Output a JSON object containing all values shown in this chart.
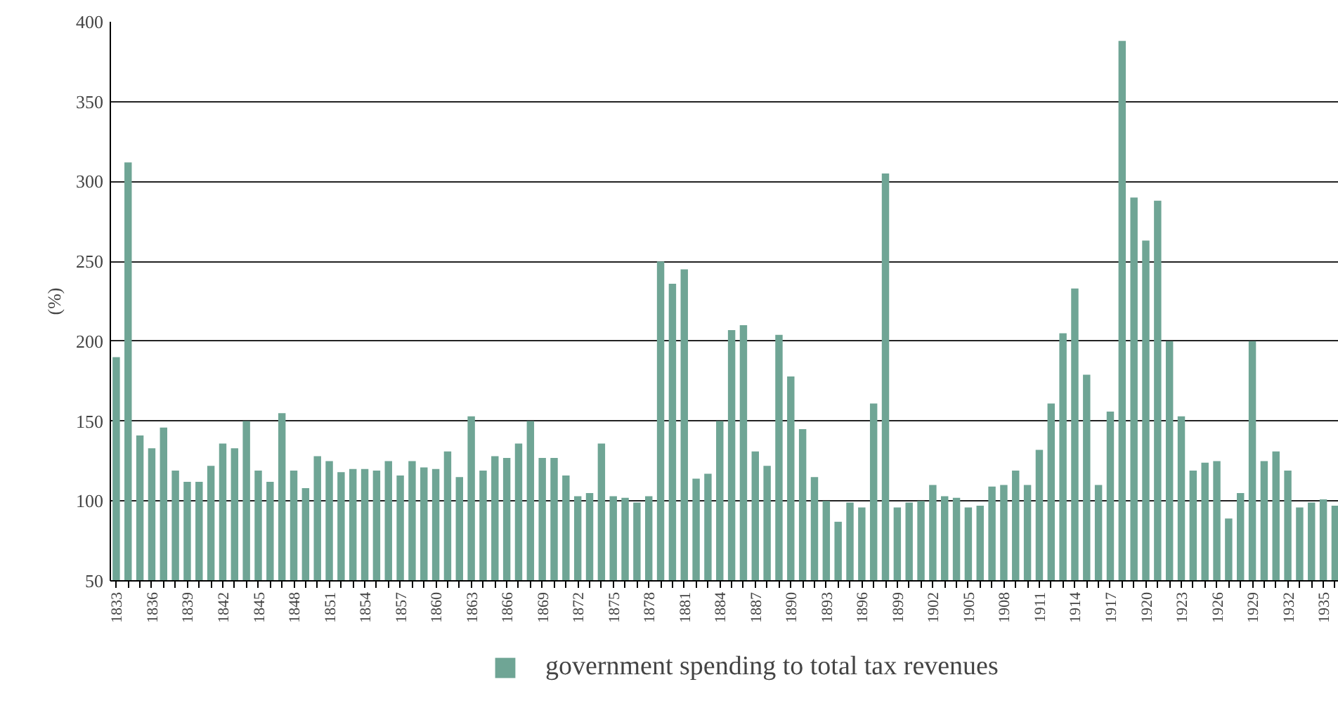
{
  "chart_data": {
    "type": "bar",
    "ylabel": "(%)",
    "categories": [
      "1833",
      null,
      null,
      "1836",
      null,
      null,
      "1839",
      null,
      null,
      "1842",
      null,
      null,
      "1845",
      null,
      null,
      "1848",
      null,
      null,
      "1851",
      null,
      null,
      "1854",
      null,
      null,
      "1857",
      null,
      null,
      "1860",
      null,
      null,
      "1863",
      null,
      null,
      "1866",
      null,
      null,
      "1869",
      null,
      null,
      "1872",
      null,
      null,
      "1875",
      null,
      null,
      "1878",
      null,
      null,
      "1881",
      null,
      null,
      "1884",
      null,
      null,
      "1887",
      null,
      null,
      "1890",
      null,
      null,
      "1893",
      null,
      null,
      "1896",
      null,
      null,
      "1899",
      null,
      null,
      "1902",
      null,
      null,
      "1905",
      null,
      null,
      "1908",
      null,
      null,
      "1911",
      null,
      null,
      "1914",
      null,
      null,
      "1917",
      null,
      null,
      "1920",
      null,
      null,
      "1923",
      null,
      null,
      "1926",
      null,
      null,
      "1929",
      null,
      null,
      "1932",
      null,
      null,
      "1935",
      null
    ],
    "series": [
      {
        "name": "government spending to total tax revenues",
        "color": "#6fa595",
        "values": [
          190,
          312,
          141,
          133,
          146,
          119,
          112,
          112,
          122,
          136,
          133,
          150,
          119,
          112,
          155,
          119,
          108,
          128,
          125,
          118,
          120,
          120,
          119,
          125,
          116,
          125,
          121,
          120,
          131,
          115,
          153,
          119,
          128,
          127,
          136,
          150,
          127,
          127,
          116,
          103,
          105,
          136,
          103,
          102,
          99,
          103,
          250,
          236,
          245,
          114,
          117,
          150,
          207,
          210,
          131,
          122,
          204,
          178,
          145,
          115,
          100,
          87,
          99,
          96,
          161,
          305,
          96,
          99,
          100,
          110,
          103,
          102,
          96,
          97,
          109,
          110,
          119,
          110,
          132,
          161,
          205,
          233,
          179,
          110,
          156,
          388,
          290,
          263,
          288,
          200,
          153,
          119,
          124,
          125,
          89,
          105,
          200,
          125,
          131,
          119,
          96,
          99,
          101,
          97
        ]
      }
    ],
    "ylim": [
      50,
      400
    ],
    "yticks": [
      50,
      100,
      150,
      200,
      250,
      300,
      350,
      400
    ],
    "grid": "y",
    "legend": "bottom"
  }
}
